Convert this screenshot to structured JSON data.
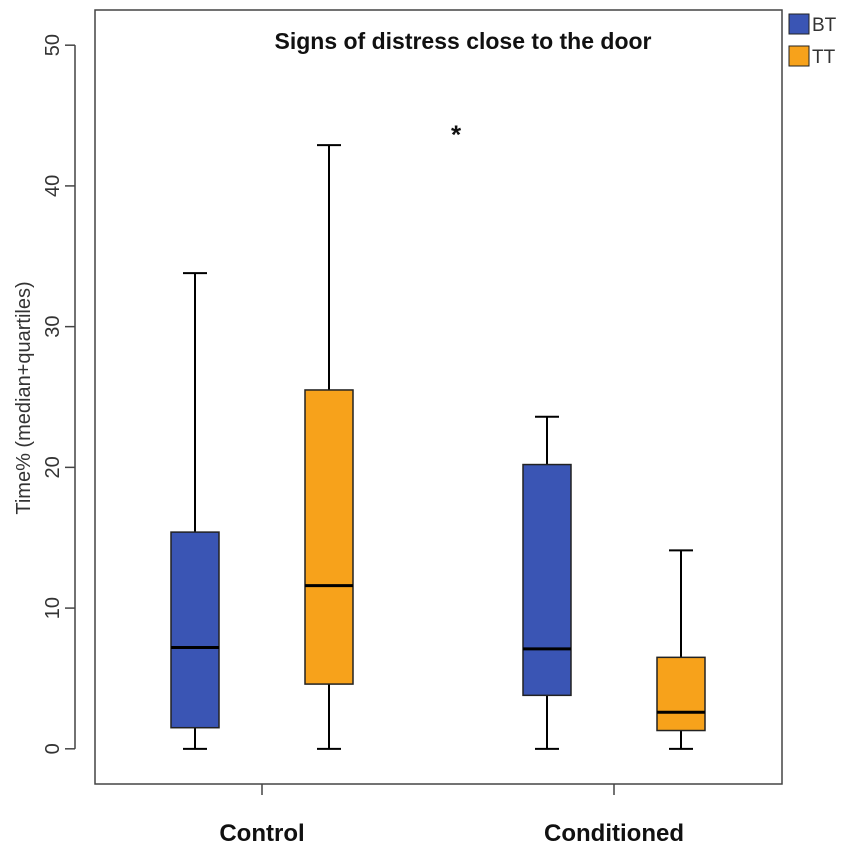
{
  "chart_data": {
    "type": "box",
    "title": "Signs of distress close to the door",
    "xlabel": "",
    "ylabel": "Time% (median+quartiles)",
    "ylim": [
      -2.5,
      52.5
    ],
    "yticks": [
      0,
      10,
      20,
      30,
      40,
      50
    ],
    "groups": [
      "Control",
      "Conditioned"
    ],
    "series": [
      {
        "name": "BT",
        "color": "#3a55b4",
        "boxes": [
          {
            "group": "Control",
            "min": 0,
            "q1": 1.5,
            "median": 7.2,
            "q3": 15.4,
            "max": 33.8
          },
          {
            "group": "Conditioned",
            "min": 0,
            "q1": 3.8,
            "median": 7.1,
            "q3": 20.2,
            "max": 23.6
          }
        ]
      },
      {
        "name": "TT",
        "color": "#f7a21b",
        "boxes": [
          {
            "group": "Control",
            "min": 0,
            "q1": 4.6,
            "median": 11.6,
            "q3": 25.5,
            "max": 42.9
          },
          {
            "group": "Conditioned",
            "min": 0,
            "q1": 1.3,
            "median": 2.6,
            "q3": 6.5,
            "max": 14.1
          }
        ]
      }
    ],
    "annotations": [
      {
        "text": "*",
        "x_between": [
          "Control",
          "Conditioned"
        ],
        "y": 44
      }
    ],
    "legend": {
      "position": "top-right",
      "items": [
        "BT",
        "TT"
      ]
    },
    "grid": false
  }
}
